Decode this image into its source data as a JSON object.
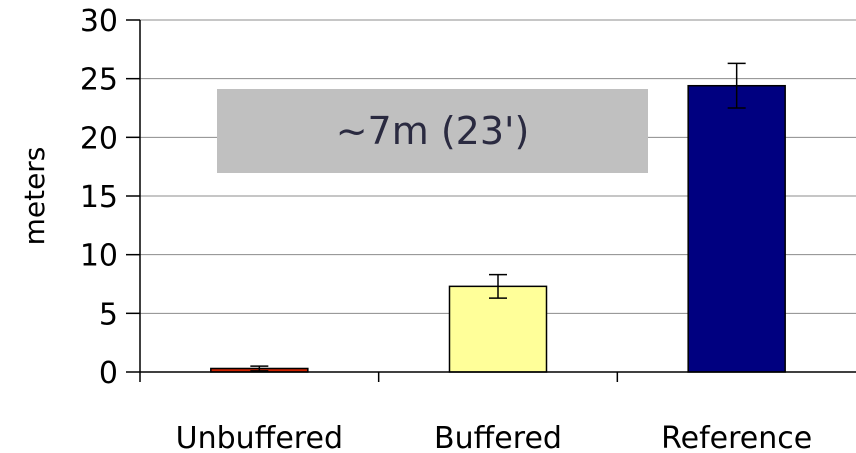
{
  "chart_data": {
    "type": "bar",
    "title": "",
    "xlabel": "",
    "ylabel": "meters",
    "ylim": [
      0,
      30
    ],
    "yticks": [
      0,
      5,
      10,
      15,
      20,
      25,
      30
    ],
    "grid": true,
    "categories": [
      "Unbuffered",
      "Buffered",
      "Reference"
    ],
    "values": [
      0.3,
      7.3,
      24.4
    ],
    "errors": [
      0.2,
      1.0,
      1.9
    ],
    "colors": [
      "#cc2200",
      "#ffff99",
      "#000080"
    ],
    "annotation": {
      "text": "~7m (23')",
      "box_color": "#c0c0c0"
    }
  }
}
